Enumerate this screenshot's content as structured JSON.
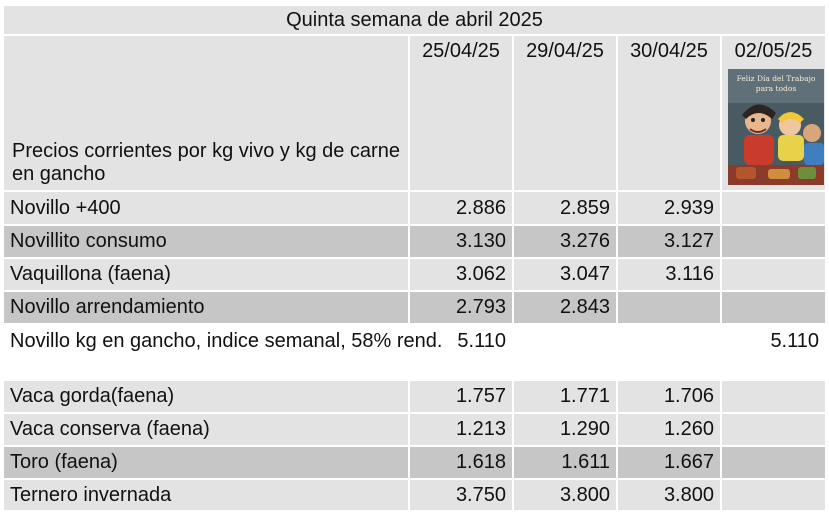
{
  "table": {
    "title": "Quinta semana de abril 2025",
    "header_label": "Precios corrientes  por kg vivo y kg de carne en gancho",
    "dates": [
      "25/04/25",
      "29/04/25",
      "30/04/25",
      "02/05/25"
    ],
    "image_caption": "Feliz Día del Trabajo para todos",
    "rows": [
      {
        "label": "Novillo +400",
        "values": [
          "2.886",
          "2.859",
          "2.939",
          ""
        ]
      },
      {
        "label": "Novillito consumo",
        "values": [
          "3.130",
          "3.276",
          "3.127",
          ""
        ]
      },
      {
        "label": "Vaquillona (faena)",
        "values": [
          "3.062",
          "3.047",
          "3.116",
          ""
        ]
      },
      {
        "label": "Novillo arrendamiento",
        "values": [
          "2.793",
          "2.843",
          "",
          ""
        ]
      },
      {
        "label": "Novillo kg en gancho, indice semanal, 58% rend.",
        "values": [
          "5.110",
          "",
          "",
          "5.110"
        ]
      },
      {
        "label": "Vaca gorda(faena)",
        "values": [
          "1.757",
          "1.771",
          "1.706",
          ""
        ]
      },
      {
        "label": "Vaca conserva (faena)",
        "values": [
          "1.213",
          "1.290",
          "1.260",
          ""
        ]
      },
      {
        "label": "Toro (faena)",
        "values": [
          "1.618",
          "1.611",
          "1.667",
          ""
        ]
      },
      {
        "label": "Ternero invernada",
        "values": [
          "3.750",
          "3.800",
          "3.800",
          ""
        ]
      }
    ]
  },
  "colors": {
    "light_row": "#e3e3e3",
    "dark_row": "#c6c6c6",
    "white_row": "#ffffff",
    "text": "#111111"
  }
}
